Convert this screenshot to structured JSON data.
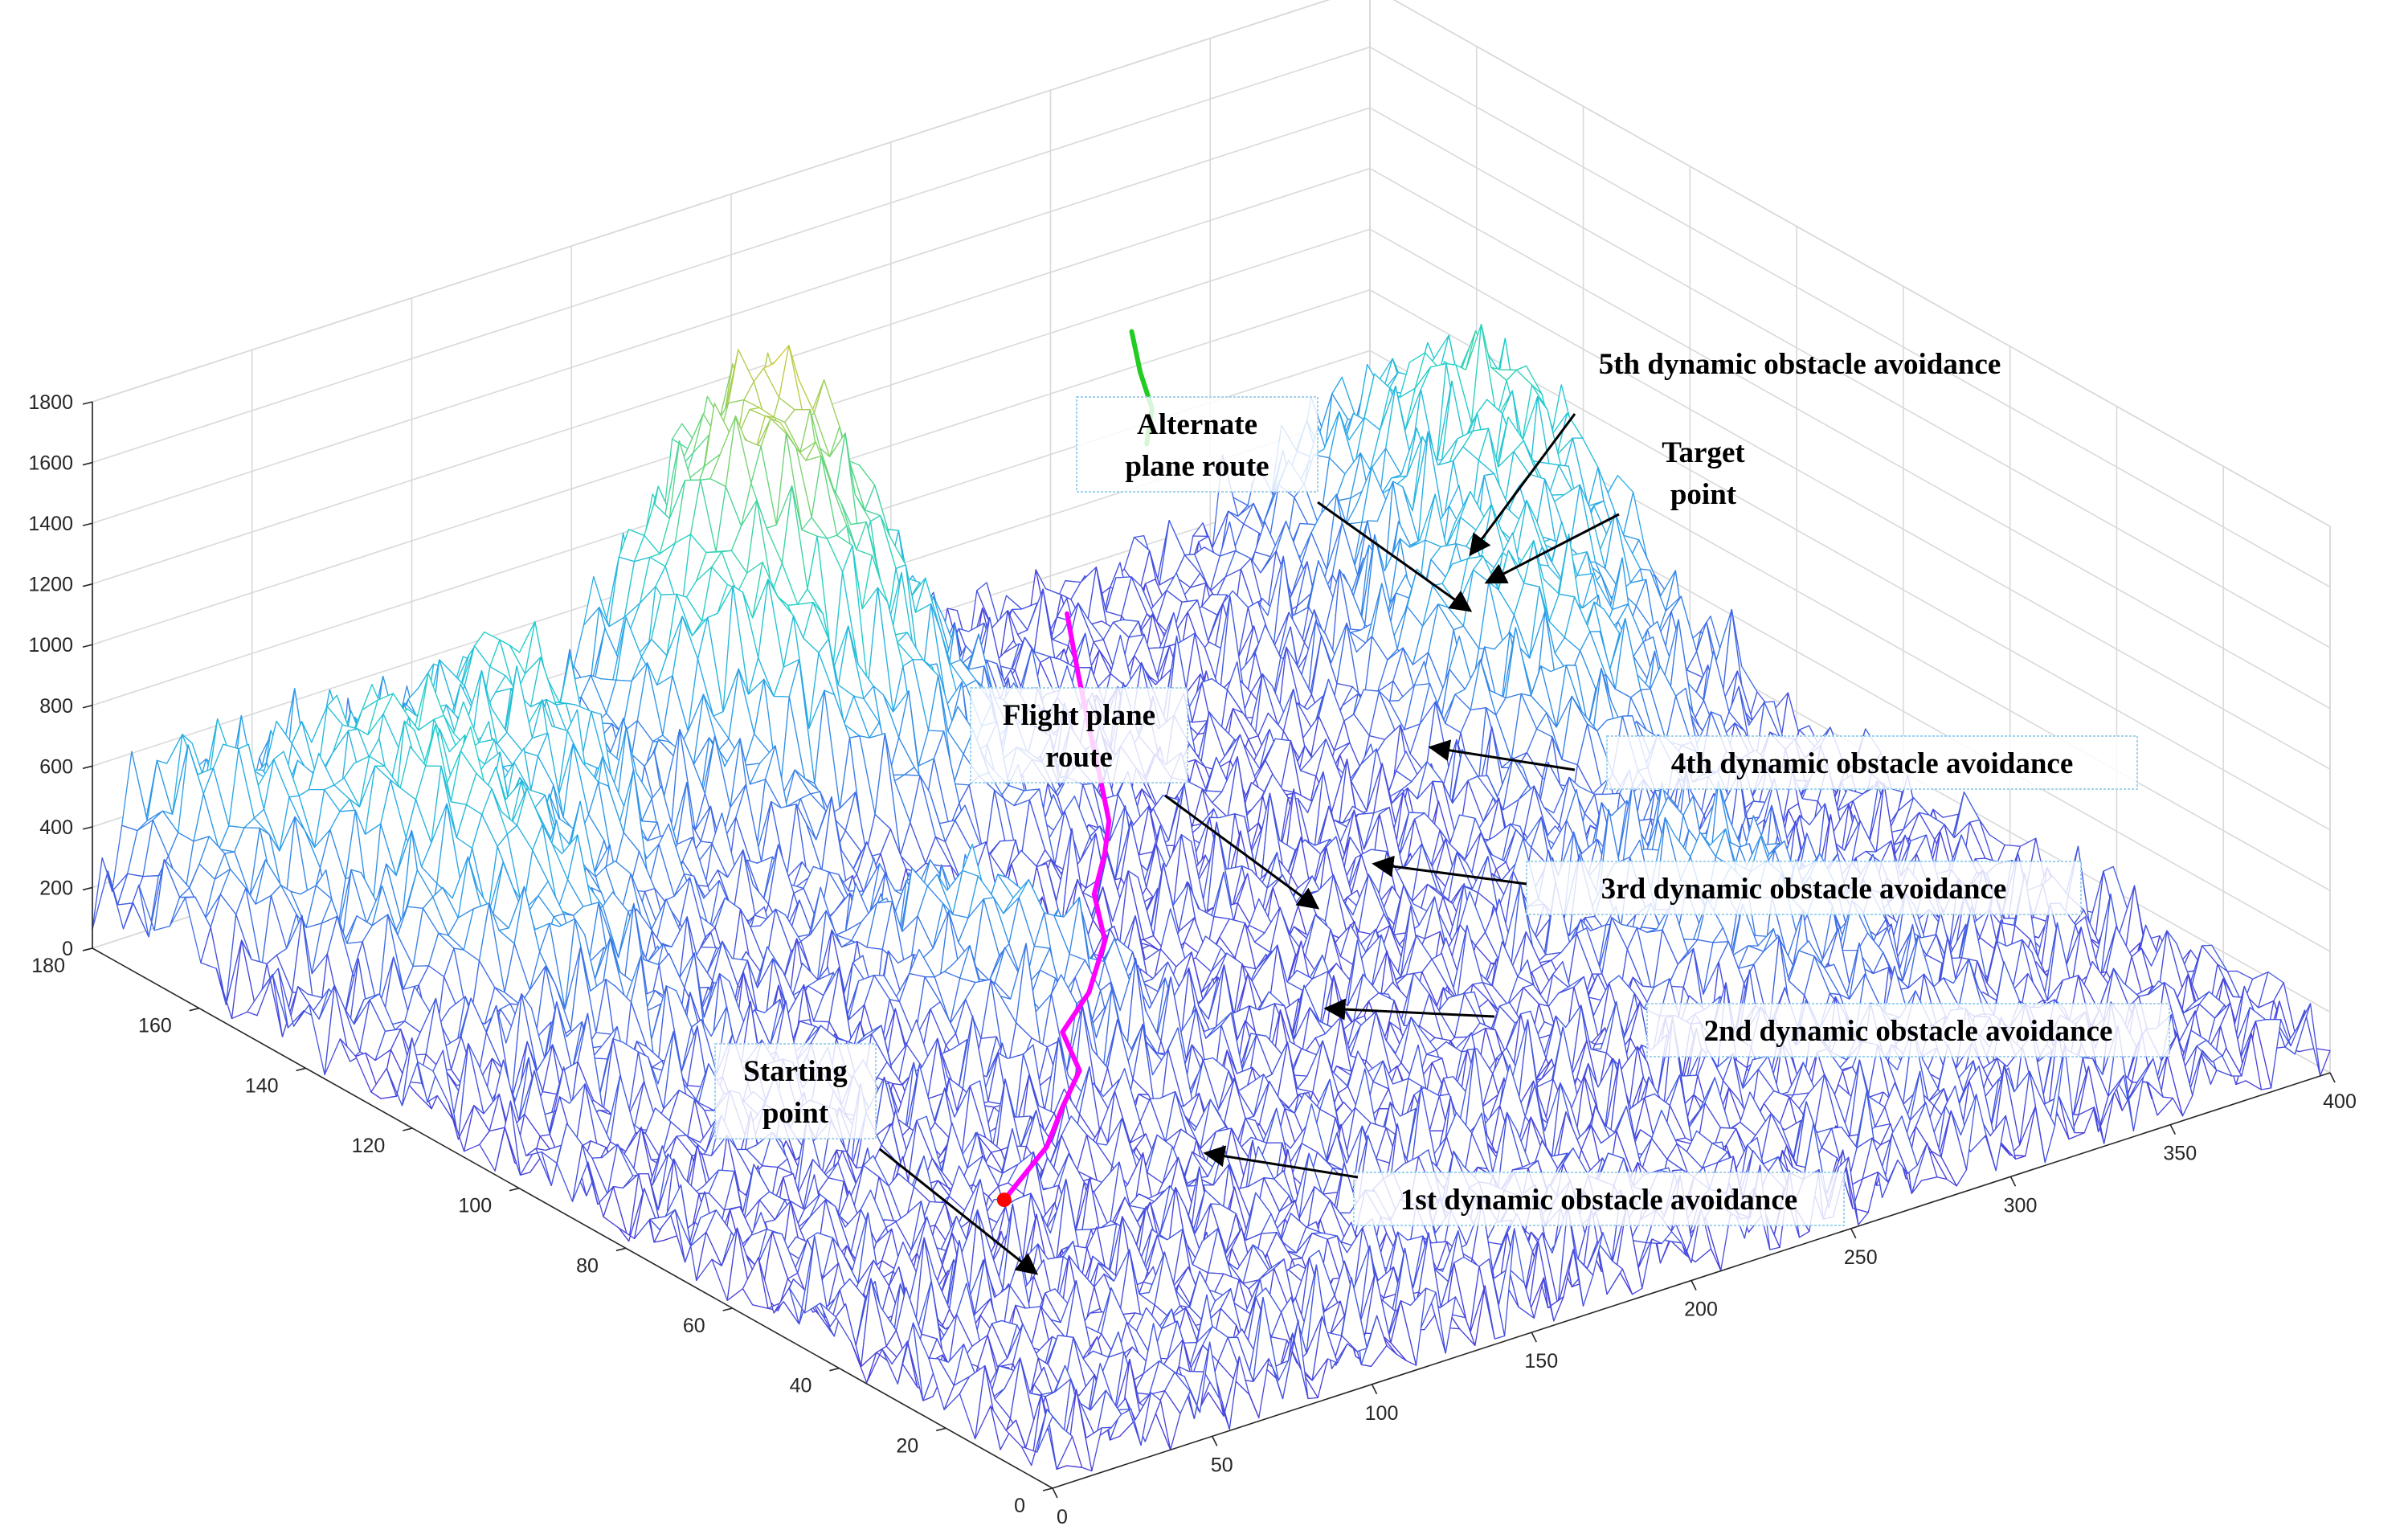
{
  "chart_data": {
    "type": "surface",
    "title": "",
    "xlabel": "",
    "ylabel": "",
    "zlabel": "",
    "xlim": [
      0,
      400
    ],
    "ylim": [
      0,
      180
    ],
    "zlim": [
      0,
      1800
    ],
    "x_ticks": [
      0,
      50,
      100,
      150,
      200,
      250,
      300,
      350,
      400
    ],
    "y_ticks": [
      0,
      20,
      40,
      60,
      80,
      100,
      120,
      140,
      160,
      180
    ],
    "z_ticks": [
      0,
      200,
      400,
      600,
      800,
      1000,
      1200,
      1400,
      1600,
      1800
    ],
    "grid": true,
    "colormap": [
      "#4b2fd6",
      "#3f6fe6",
      "#2aa8e8",
      "#22d0c8",
      "#60d680",
      "#d2c83a",
      "#f2b52a"
    ],
    "series": [
      {
        "color": "#ff00ff",
        "points": [
          [
            60,
            45,
            300
          ],
          [
            85,
            52,
            320
          ],
          [
            100,
            58,
            340
          ],
          [
            112,
            62,
            380
          ],
          [
            120,
            70,
            400
          ],
          [
            135,
            74,
            440
          ],
          [
            150,
            80,
            500
          ],
          [
            160,
            88,
            540
          ],
          [
            170,
            92,
            600
          ],
          [
            178,
            96,
            640
          ],
          [
            188,
            104,
            700
          ],
          [
            195,
            110,
            760
          ],
          [
            205,
            118,
            820
          ],
          [
            215,
            126,
            900
          ]
        ]
      },
      {
        "color": "#22cc22",
        "points": [
          [
            280,
            150,
            1000
          ],
          [
            285,
            152,
            1080
          ],
          [
            288,
            156,
            1150
          ],
          [
            292,
            160,
            1230
          ]
        ]
      }
    ],
    "markers": [
      {
        "color": "#ff0000",
        "point": [
          60,
          45,
          300
        ]
      }
    ],
    "annotations": [
      {
        "text": "Starting point",
        "lines": [
          "Starting",
          "point"
        ],
        "boxed": true
      },
      {
        "text": "Flight plane route",
        "lines": [
          "Flight plane",
          "route"
        ],
        "boxed": true
      },
      {
        "text": "Alternate plane route",
        "lines": [
          "Alternate",
          "plane route"
        ],
        "boxed": true
      },
      {
        "text": "Target point",
        "lines": [
          "Target",
          "point"
        ],
        "boxed": false
      },
      {
        "text": "1st dynamic obstacle avoidance",
        "lines": [
          "1st dynamic obstacle avoidance"
        ],
        "boxed": true
      },
      {
        "text": "2nd dynamic obstacle avoidance",
        "lines": [
          "2nd dynamic obstacle avoidance"
        ],
        "boxed": true
      },
      {
        "text": "3rd dynamic obstacle avoidance",
        "lines": [
          "3rd dynamic obstacle avoidance"
        ],
        "boxed": true
      },
      {
        "text": "4th dynamic obstacle avoidance",
        "lines": [
          "4th dynamic obstacle avoidance"
        ],
        "boxed": true
      },
      {
        "text": "5th dynamic obstacle avoidance",
        "lines": [
          "5th dynamic obstacle avoidance"
        ],
        "boxed": false
      }
    ]
  }
}
